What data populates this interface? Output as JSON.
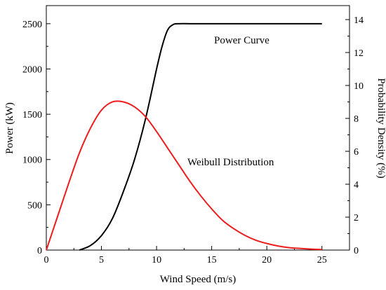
{
  "chart_data": {
    "type": "line",
    "x_axis": {
      "label": "Wind Speed (m/s)",
      "range": [
        0,
        27.5
      ],
      "ticks": [
        0,
        5,
        10,
        15,
        20,
        25
      ]
    },
    "y_axis_left": {
      "label": "Power (kW)",
      "range": [
        0,
        2700
      ],
      "ticks": [
        0,
        500,
        1000,
        1500,
        2000,
        2500
      ]
    },
    "y_axis_right": {
      "label": "Probability Density (%)",
      "range": [
        0,
        14.85
      ],
      "ticks": [
        0,
        2,
        4,
        6,
        8,
        10,
        12,
        14
      ]
    },
    "series": [
      {
        "name": "Power Curve",
        "axis": "left",
        "color": "#000000",
        "x": [
          3,
          4,
          5,
          6,
          7,
          8,
          9,
          10,
          10.5,
          11,
          11.5,
          12,
          13,
          14,
          15,
          16,
          17,
          18,
          19,
          20,
          21,
          22,
          23,
          24,
          25
        ],
        "y": [
          0,
          50,
          160,
          350,
          650,
          1000,
          1450,
          2000,
          2250,
          2430,
          2490,
          2500,
          2500,
          2500,
          2500,
          2500,
          2500,
          2500,
          2500,
          2500,
          2500,
          2500,
          2500,
          2500,
          2500
        ]
      },
      {
        "name": "Weibull Distribution",
        "axis": "right",
        "color": "#ee1c1c",
        "x": [
          0,
          1,
          2,
          3,
          4,
          5,
          6,
          7,
          8,
          9,
          10,
          11,
          12,
          13,
          14,
          15,
          16,
          17,
          18,
          19,
          20,
          21,
          22,
          23,
          24,
          25
        ],
        "y": [
          0,
          2.0,
          4.0,
          5.9,
          7.4,
          8.5,
          9.0,
          9.0,
          8.7,
          8.1,
          7.2,
          6.2,
          5.2,
          4.2,
          3.3,
          2.5,
          1.8,
          1.3,
          0.9,
          0.6,
          0.4,
          0.25,
          0.15,
          0.1,
          0.06,
          0.03
        ]
      }
    ],
    "annotations": [
      {
        "text": "Power Curve",
        "color": "#000000"
      },
      {
        "text": "Weibull Distribution",
        "color": "#ee1c1c"
      }
    ],
    "grid": false,
    "legend": "none"
  }
}
